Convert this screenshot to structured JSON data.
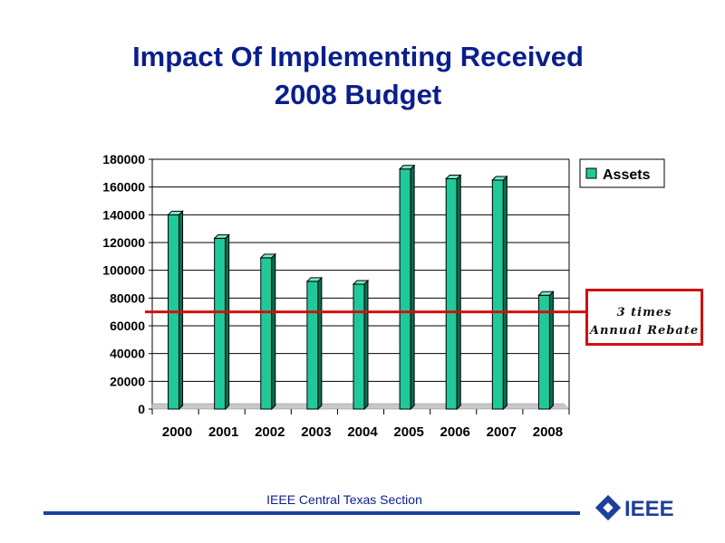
{
  "slide": {
    "title_line1": "Impact Of Implementing Received",
    "title_line2": "2008 Budget",
    "callout_line1": "3 times",
    "callout_line2": "Annual Rebate",
    "footer": "IEEE Central Texas Section",
    "logo_text": "IEEE"
  },
  "colors": {
    "title": "#0a1f8c",
    "bar_front": "#1fc99a",
    "bar_side": "#0b6e52",
    "bar_top": "#7fe6c5",
    "reference_line": "#d01010",
    "footer_line": "#1d3f9e"
  },
  "chart_data": {
    "type": "bar",
    "title": "",
    "xlabel": "",
    "ylabel": "",
    "categories": [
      "2000",
      "2001",
      "2002",
      "2003",
      "2004",
      "2005",
      "2006",
      "2007",
      "2008"
    ],
    "series": [
      {
        "name": "Assets",
        "values": [
          140000,
          123000,
          109000,
          92000,
          90000,
          173000,
          166000,
          165000,
          82000
        ]
      }
    ],
    "ylim": [
      0,
      180000
    ],
    "yticks": [
      0,
      20000,
      40000,
      60000,
      80000,
      100000,
      120000,
      140000,
      160000,
      180000
    ],
    "grid": true,
    "legend": "top-right",
    "reference_line": {
      "value": 70000
    }
  }
}
